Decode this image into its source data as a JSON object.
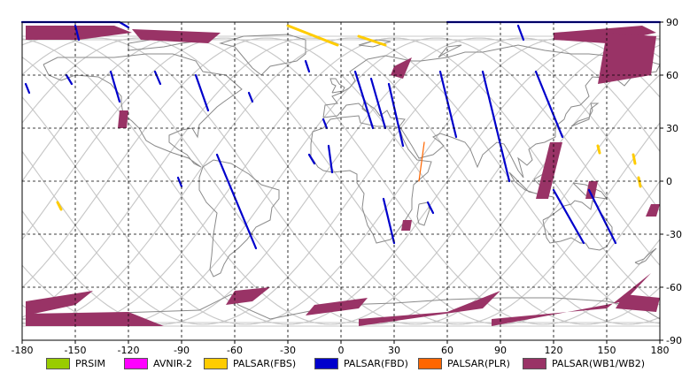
{
  "map": {
    "x_ticks": [
      "-180",
      "-150",
      "-120",
      "-90",
      "-60",
      "-30",
      "0",
      "30",
      "60",
      "90",
      "120",
      "150",
      "180"
    ],
    "y_ticks": [
      "90",
      "60",
      "30",
      "0",
      "-30",
      "-60",
      "-90"
    ],
    "x_range": [
      -180,
      180
    ],
    "y_range": [
      -90,
      90
    ],
    "grid_step": 30,
    "grid": "dashed",
    "colors": {
      "land_outline": "#8a8a8a",
      "orbit_track": "#c8c8c8",
      "grid": "#000000"
    }
  },
  "legend": {
    "items": [
      {
        "label": "PRSIM",
        "color": "#99cc00"
      },
      {
        "label": "AVNIR-2",
        "color": "#ff00ff"
      },
      {
        "label": "PALSAR(FBS)",
        "color": "#ffcc00"
      },
      {
        "label": "PALSAR(FBD)",
        "color": "#0000cc"
      },
      {
        "label": "PALSAR(PLR)",
        "color": "#ff6600"
      },
      {
        "label": "PALSAR(WB1/WB2)",
        "color": "#993366"
      }
    ]
  },
  "observations": {
    "wb_swaths": [
      {
        "lon": [
          -178,
          -128,
          -118,
          -148,
          -178
        ],
        "lat": [
          88,
          88,
          84,
          80,
          80
        ]
      },
      {
        "lon": [
          -118,
          -68,
          -75,
          -113
        ],
        "lat": [
          86,
          84,
          78,
          80
        ]
      },
      {
        "lon": [
          120,
          170,
          178,
          150,
          120
        ],
        "lat": [
          84,
          88,
          84,
          78,
          80
        ]
      },
      {
        "lon": [
          150,
          178,
          175,
          145
        ],
        "lat": [
          84,
          82,
          60,
          55
        ]
      },
      {
        "lon": [
          -125,
          -120,
          -121,
          -126
        ],
        "lat": [
          40,
          40,
          30,
          30
        ]
      },
      {
        "lon": [
          30,
          40,
          35,
          28
        ],
        "lat": [
          65,
          70,
          58,
          60
        ]
      },
      {
        "lon": [
          118,
          125,
          117,
          110
        ],
        "lat": [
          22,
          22,
          -10,
          -10
        ]
      },
      {
        "lon": [
          140,
          145,
          143,
          138
        ],
        "lat": [
          0,
          0,
          -10,
          -10
        ]
      },
      {
        "lon": [
          175,
          180,
          178,
          172
        ],
        "lat": [
          -13,
          -13,
          -20,
          -20
        ]
      },
      {
        "lon": [
          35,
          40,
          39,
          34
        ],
        "lat": [
          -22,
          -22,
          -28,
          -28
        ]
      },
      {
        "lon": [
          -178,
          -140,
          -150,
          -178
        ],
        "lat": [
          -68,
          -62,
          -70,
          -76
        ]
      },
      {
        "lon": [
          -178,
          -120,
          -100,
          -178
        ],
        "lat": [
          -75,
          -74,
          -82,
          -82
        ]
      },
      {
        "lon": [
          -60,
          -40,
          -50,
          -65
        ],
        "lat": [
          -62,
          -60,
          -68,
          -70
        ]
      },
      {
        "lon": [
          -15,
          15,
          10,
          -20
        ],
        "lat": [
          -70,
          -66,
          -72,
          -76
        ]
      },
      {
        "lon": [
          10,
          60,
          90,
          80,
          10
        ],
        "lat": [
          -78,
          -74,
          -62,
          -72,
          -82
        ]
      },
      {
        "lon": [
          85,
          150,
          175,
          160,
          85
        ],
        "lat": [
          -78,
          -72,
          -52,
          -68,
          -82
        ]
      },
      {
        "lon": [
          160,
          180,
          178,
          155
        ],
        "lat": [
          -64,
          -66,
          -74,
          -72
        ]
      }
    ],
    "fbd_tracks": [
      {
        "lon": [
          -150,
          -148
        ],
        "lat": [
          88,
          80
        ]
      },
      {
        "lon": [
          -180,
          -125,
          -120
        ],
        "lat": [
          90,
          90,
          87
        ]
      },
      {
        "lon": [
          -178,
          -176
        ],
        "lat": [
          55,
          50
        ]
      },
      {
        "lon": [
          -155,
          -152
        ],
        "lat": [
          60,
          55
        ]
      },
      {
        "lon": [
          -130,
          -125
        ],
        "lat": [
          62,
          45
        ]
      },
      {
        "lon": [
          -105,
          -102
        ],
        "lat": [
          62,
          55
        ]
      },
      {
        "lon": [
          -82,
          -75
        ],
        "lat": [
          60,
          40
        ]
      },
      {
        "lon": [
          -52,
          -50
        ],
        "lat": [
          50,
          45
        ]
      },
      {
        "lon": [
          -20,
          -18
        ],
        "lat": [
          68,
          62
        ]
      },
      {
        "lon": [
          -10,
          -8
        ],
        "lat": [
          35,
          30
        ]
      },
      {
        "lon": [
          -7,
          -5
        ],
        "lat": [
          20,
          5
        ]
      },
      {
        "lon": [
          -92,
          -90
        ],
        "lat": [
          2,
          -3
        ]
      },
      {
        "lon": [
          -70,
          -48
        ],
        "lat": [
          15,
          -38
        ]
      },
      {
        "lon": [
          8,
          18
        ],
        "lat": [
          62,
          30
        ]
      },
      {
        "lon": [
          17,
          25
        ],
        "lat": [
          58,
          30
        ]
      },
      {
        "lon": [
          27,
          35
        ],
        "lat": [
          55,
          20
        ]
      },
      {
        "lon": [
          -18,
          -15
        ],
        "lat": [
          15,
          10
        ]
      },
      {
        "lon": [
          24,
          30
        ],
        "lat": [
          -10,
          -35
        ]
      },
      {
        "lon": [
          49,
          52
        ],
        "lat": [
          -12,
          -18
        ]
      },
      {
        "lon": [
          56,
          65
        ],
        "lat": [
          62,
          25
        ]
      },
      {
        "lon": [
          80,
          95
        ],
        "lat": [
          62,
          0
        ]
      },
      {
        "lon": [
          110,
          125
        ],
        "lat": [
          62,
          25
        ]
      },
      {
        "lon": [
          120,
          137
        ],
        "lat": [
          -5,
          -35
        ]
      },
      {
        "lon": [
          140,
          155
        ],
        "lat": [
          -5,
          -35
        ]
      },
      {
        "lon": [
          100,
          103
        ],
        "lat": [
          88,
          80
        ]
      },
      {
        "lon": [
          60,
          180
        ],
        "lat": [
          90,
          90
        ]
      }
    ],
    "fbs_tracks": [
      {
        "lon": [
          -30,
          -2
        ],
        "lat": [
          88,
          77
        ]
      },
      {
        "lon": [
          10,
          25
        ],
        "lat": [
          82,
          77
        ]
      },
      {
        "lon": [
          -160,
          -158
        ],
        "lat": [
          -12,
          -16
        ]
      },
      {
        "lon": [
          145,
          146
        ],
        "lat": [
          20,
          16
        ]
      },
      {
        "lon": [
          165,
          166
        ],
        "lat": [
          15,
          10
        ]
      },
      {
        "lon": [
          168,
          169
        ],
        "lat": [
          2,
          -3
        ]
      }
    ],
    "plr_tracks": [
      {
        "lon": [
          47,
          44
        ],
        "lat": [
          22,
          0
        ]
      }
    ]
  }
}
